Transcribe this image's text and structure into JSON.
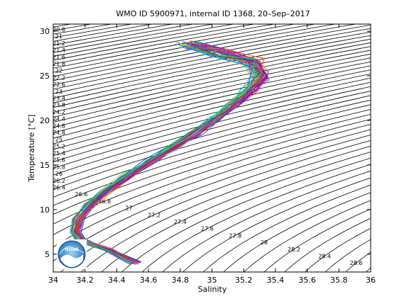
{
  "chart_data": {
    "type": "line",
    "title": "WMO ID 5900971, internal ID 1368, 20–Sep–2017",
    "xlabel": "Salinity",
    "ylabel": "Temperature [°C]",
    "xlim": [
      34,
      36
    ],
    "ylim": [
      3,
      30.8
    ],
    "xticks": [
      "34",
      "34.2",
      "34.4",
      "34.6",
      "34.8",
      "35",
      "35.2",
      "35.4",
      "35.6",
      "35.8",
      "36"
    ],
    "yticks": [
      "5",
      "10",
      "15",
      "20",
      "25",
      "30"
    ],
    "grid": false,
    "density_contours": {
      "labels": [
        "20.8",
        "21",
        "21.2",
        "21.4",
        "21.6",
        "21.8",
        "22",
        "22.2",
        "22.6",
        "23",
        "23.4",
        "23.8",
        "24.2",
        "24.4",
        "24.6",
        "24.8",
        "25",
        "25.2",
        "25.4",
        "25.6",
        "25.8",
        "26",
        "26.2",
        "26.4",
        "26.6",
        "26.8",
        "27",
        "27.2",
        "27.4",
        "27.6",
        "27.8",
        "28",
        "28.2",
        "28.4",
        "28.6"
      ]
    },
    "profiles_mean": {
      "salinity": [
        34.52,
        34.35,
        34.18,
        34.14,
        34.16,
        34.23,
        34.33,
        34.47,
        34.62,
        34.76,
        34.89,
        35.01,
        35.13,
        35.24,
        35.3,
        35.26,
        35.05,
        34.85
      ],
      "temperature": [
        4.0,
        5.5,
        6.5,
        7.5,
        9.0,
        10.5,
        12.0,
        13.8,
        15.5,
        17.0,
        18.5,
        20.0,
        21.6,
        23.5,
        25.0,
        26.5,
        27.6,
        28.5
      ]
    },
    "profile_count": 60,
    "logo": "NOAA"
  }
}
